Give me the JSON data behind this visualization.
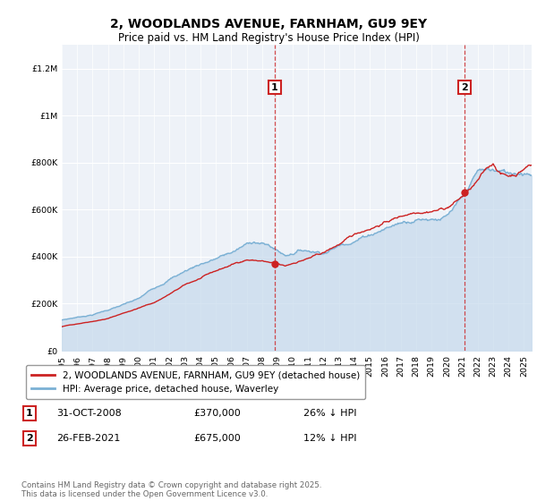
{
  "title": "2, WOODLANDS AVENUE, FARNHAM, GU9 9EY",
  "subtitle": "Price paid vs. HM Land Registry's House Price Index (HPI)",
  "title_fontsize": 10,
  "subtitle_fontsize": 8.5,
  "background_color": "#ffffff",
  "plot_bg_color": "#eef2f8",
  "hpi_color": "#7ab0d4",
  "hpi_fill_color": "#c5d9ec",
  "property_color": "#cc2222",
  "ylim": [
    0,
    1300000
  ],
  "transactions": [
    {
      "date": 2008.83,
      "price": 370000,
      "label": "1",
      "pct": "26% ↓ HPI",
      "date_str": "31-OCT-2008"
    },
    {
      "date": 2021.15,
      "price": 675000,
      "label": "2",
      "pct": "12% ↓ HPI",
      "date_str": "26-FEB-2021"
    }
  ],
  "legend_property": "2, WOODLANDS AVENUE, FARNHAM, GU9 9EY (detached house)",
  "legend_hpi": "HPI: Average price, detached house, Waverley",
  "footnote": "Contains HM Land Registry data © Crown copyright and database right 2025.\nThis data is licensed under the Open Government Licence v3.0.",
  "xmin": 1995,
  "xmax": 2025.5
}
